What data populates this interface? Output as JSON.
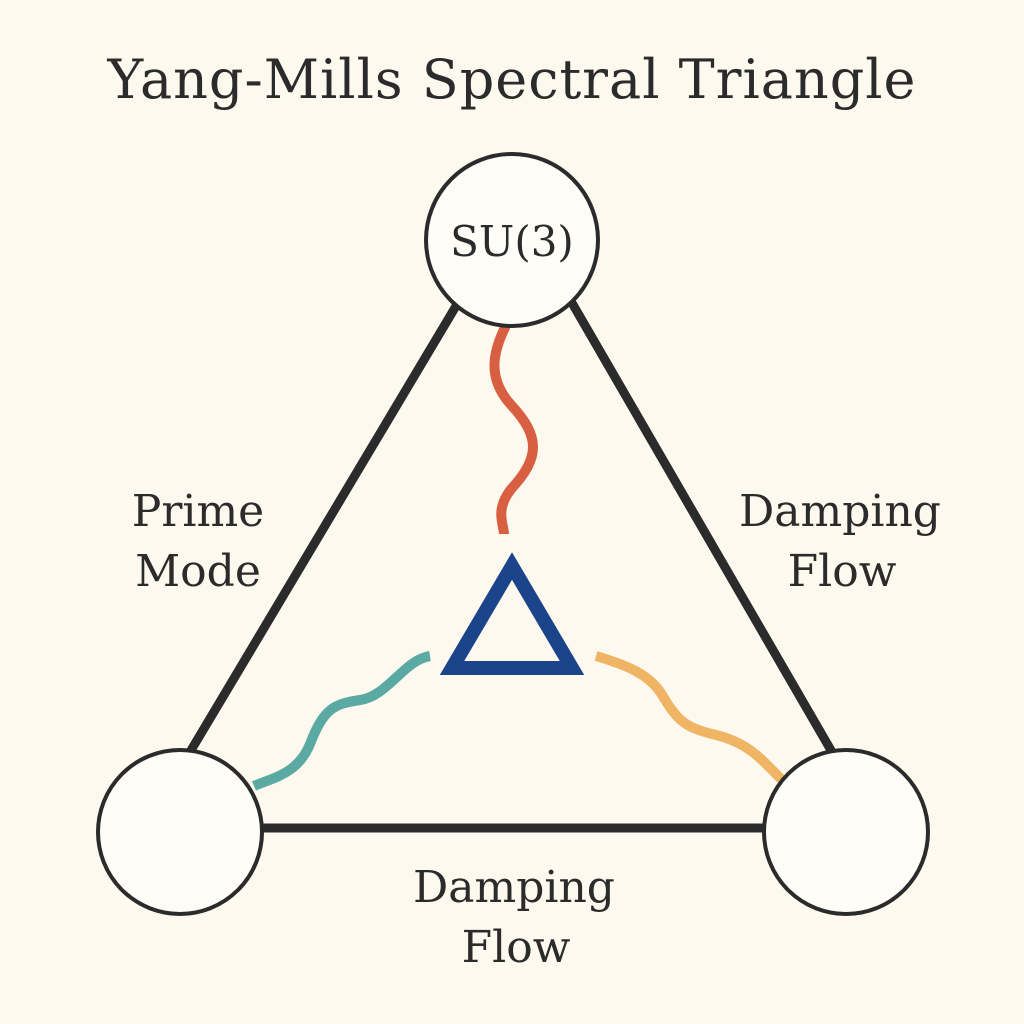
{
  "title": "Yang-Mills Spectral Triangle",
  "nodes": {
    "top": {
      "label": "SU(3)"
    },
    "bottom_left": {
      "label": ""
    },
    "bottom_right": {
      "label": ""
    }
  },
  "edges": {
    "left": {
      "line1": "Prime",
      "line2": "Mode"
    },
    "right": {
      "line1": "Damping",
      "line2": "Flow"
    },
    "bottom": {
      "line1": "Damping",
      "line2": "Flow"
    }
  },
  "center_symbol": "delta-icon",
  "colors": {
    "background": "#fdf9ef",
    "ink": "#2b2b2b",
    "node_fill": "#fffdf7",
    "wave_top": "#d95f43",
    "wave_left": "#5aaaa3",
    "wave_right": "#efb564",
    "delta": "#1c448a"
  }
}
